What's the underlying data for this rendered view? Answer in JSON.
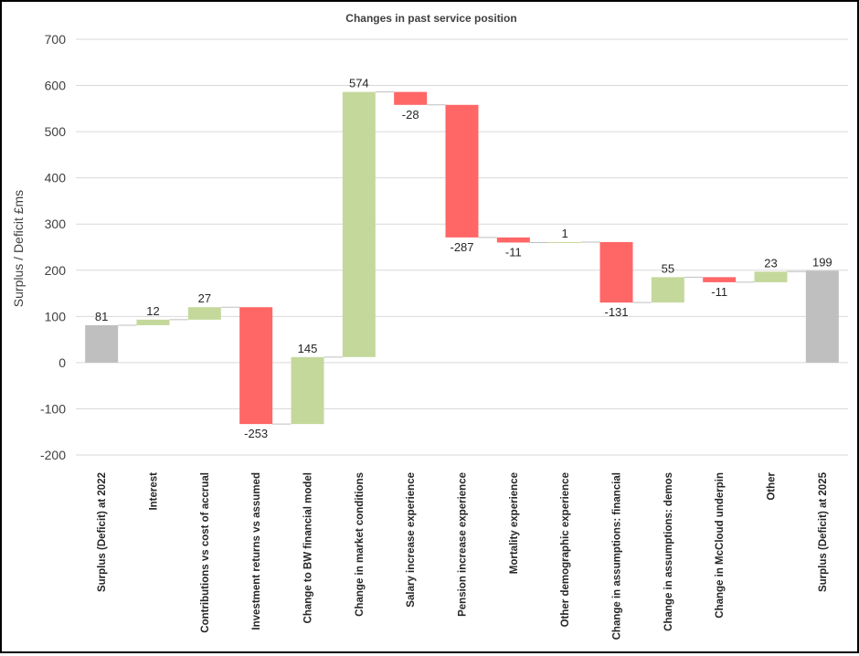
{
  "chart_data": {
    "type": "waterfall",
    "title": "Changes in past service position",
    "xlabel": "",
    "ylabel": "Surplus / Deficit £ms",
    "ylim": [
      -200,
      700
    ],
    "yticks": [
      -200,
      -100,
      0,
      100,
      200,
      300,
      400,
      500,
      600,
      700
    ],
    "grid": true,
    "legend": "none",
    "colors": {
      "total": "#BFBFBF",
      "increase": "#C5D89C",
      "decrease": "#FF6666",
      "connector": "#BFBFBF",
      "gridline": "#D9D9D9"
    },
    "categories": [
      "Surplus (Deficit) at 2022",
      "Interest",
      "Contributions vs cost of accrual",
      "Investment returns vs assumed",
      "Change to BW financial model",
      "Change in market conditions",
      "Salary increase experience",
      "Pension increase experience",
      "Mortality experience",
      "Other demographic experience",
      "Change in assumptions: financial",
      "Change in assumptions: demos",
      "Change in McCloud underpin",
      "Other",
      "Surplus (Deficit) at 2025"
    ],
    "values": [
      81,
      12,
      27,
      -253,
      145,
      574,
      -28,
      -287,
      -11,
      1,
      -131,
      55,
      -11,
      23,
      199
    ],
    "labels": [
      "81",
      "12",
      "27",
      "-253",
      "145",
      "574",
      "-28",
      "-287",
      "-11",
      "1",
      "-131",
      "55",
      "-11",
      "23",
      "199"
    ],
    "kinds": [
      "total",
      "delta",
      "delta",
      "delta",
      "delta",
      "delta",
      "delta",
      "delta",
      "delta",
      "delta",
      "delta",
      "delta",
      "delta",
      "delta",
      "total"
    ]
  }
}
